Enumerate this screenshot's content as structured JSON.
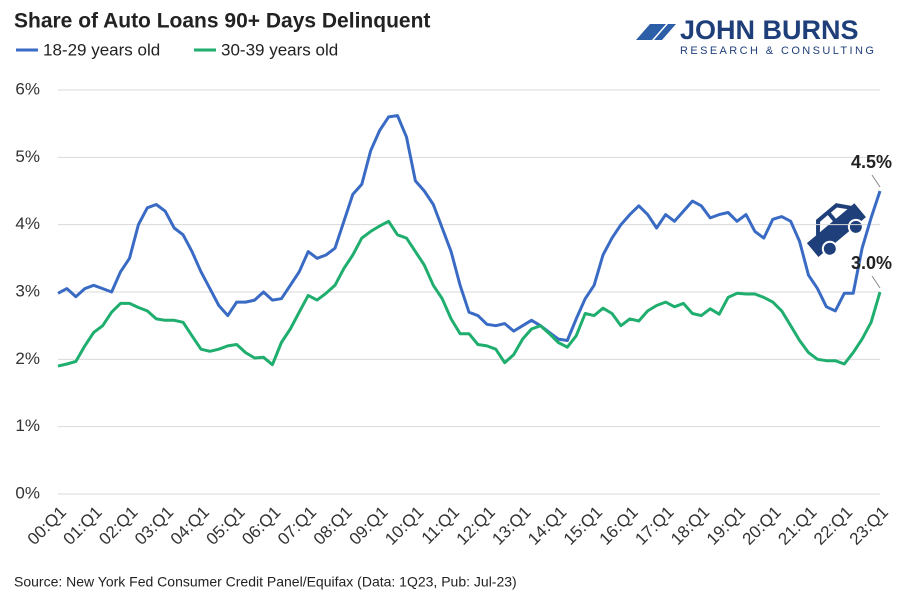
{
  "logo": {
    "name": "JOHN BURNS",
    "tagline": "RESEARCH & CONSULTING"
  },
  "chart_data": {
    "type": "line",
    "title": "Share of Auto Loans 90+ Days Delinquent",
    "source": "Source: New York Fed Consumer Credit Panel/Equifax (Data: 1Q23, Pub: Jul-23)",
    "categories": [
      "00:Q1",
      null,
      null,
      null,
      "01:Q1",
      null,
      null,
      null,
      "02:Q1",
      null,
      null,
      null,
      "03:Q1",
      null,
      null,
      null,
      "04:Q1",
      null,
      null,
      null,
      "05:Q1",
      null,
      null,
      null,
      "06:Q1",
      null,
      null,
      null,
      "07:Q1",
      null,
      null,
      null,
      "08:Q1",
      null,
      null,
      null,
      "09:Q1",
      null,
      null,
      null,
      "10:Q1",
      null,
      null,
      null,
      "11:Q1",
      null,
      null,
      null,
      "12:Q1",
      null,
      null,
      null,
      "13:Q1",
      null,
      null,
      null,
      "14:Q1",
      null,
      null,
      null,
      "15:Q1",
      null,
      null,
      null,
      "16:Q1",
      null,
      null,
      null,
      "17:Q1",
      null,
      null,
      null,
      "18:Q1",
      null,
      null,
      null,
      "19:Q1",
      null,
      null,
      null,
      "20:Q1",
      null,
      null,
      null,
      "21:Q1",
      null,
      null,
      null,
      "22:Q1",
      null,
      null,
      null,
      "23:Q1"
    ],
    "series": [
      {
        "name": "18-29 years old",
        "color": "#3a6bc4",
        "values": [
          2.98,
          3.05,
          2.93,
          3.05,
          3.1,
          3.05,
          3.0,
          3.3,
          3.5,
          4.0,
          4.25,
          4.3,
          4.2,
          3.95,
          3.85,
          3.6,
          3.3,
          3.05,
          2.8,
          2.65,
          2.85,
          2.85,
          2.88,
          3.0,
          2.88,
          2.9,
          3.1,
          3.3,
          3.6,
          3.5,
          3.55,
          3.65,
          4.05,
          4.45,
          4.6,
          5.1,
          5.4,
          5.6,
          5.62,
          5.3,
          4.65,
          4.5,
          4.3,
          3.95,
          3.6,
          3.1,
          2.7,
          2.65,
          2.52,
          2.5,
          2.53,
          2.42,
          2.5,
          2.58,
          2.5,
          2.4,
          2.3,
          2.28,
          2.6,
          2.9,
          3.1,
          3.55,
          3.8,
          4.0,
          4.15,
          4.28,
          4.15,
          3.95,
          4.15,
          4.05,
          4.2,
          4.35,
          4.28,
          4.1,
          4.15,
          4.18,
          4.05,
          4.15,
          3.9,
          3.8,
          4.08,
          4.12,
          4.05,
          3.75,
          3.25,
          3.05,
          2.78,
          2.72,
          2.98,
          2.98,
          3.65,
          4.1,
          4.5
        ],
        "value_labels": [
          null,
          null,
          null,
          null,
          null,
          null,
          null,
          null,
          null,
          null,
          null,
          null,
          null,
          null,
          null,
          null,
          null,
          null,
          null,
          null,
          null,
          null,
          null,
          null,
          null,
          null,
          null,
          null,
          null,
          null,
          null,
          null,
          null,
          null,
          null,
          null,
          null,
          null,
          null,
          null,
          null,
          null,
          null,
          null,
          null,
          null,
          null,
          null,
          null,
          null,
          null,
          null,
          null,
          null,
          null,
          null,
          null,
          null,
          null,
          null,
          null,
          null,
          null,
          null,
          null,
          null,
          null,
          null,
          null,
          null,
          null,
          null,
          null,
          null,
          null,
          null,
          null,
          null,
          null,
          null,
          null,
          null,
          null,
          null,
          null,
          null,
          null,
          null,
          null,
          null,
          null,
          null,
          "4.5%"
        ]
      },
      {
        "name": "30-39 years old",
        "color": "#1fae6e",
        "values": [
          1.9,
          1.93,
          1.97,
          2.2,
          2.4,
          2.5,
          2.7,
          2.83,
          2.83,
          2.77,
          2.72,
          2.6,
          2.58,
          2.58,
          2.55,
          2.35,
          2.15,
          2.12,
          2.15,
          2.2,
          2.22,
          2.1,
          2.02,
          2.03,
          1.92,
          2.25,
          2.45,
          2.7,
          2.95,
          2.88,
          2.98,
          3.1,
          3.35,
          3.55,
          3.8,
          3.9,
          3.98,
          4.05,
          3.85,
          3.8,
          3.6,
          3.4,
          3.1,
          2.9,
          2.6,
          2.38,
          2.38,
          2.22,
          2.2,
          2.15,
          1.95,
          2.07,
          2.3,
          2.45,
          2.5,
          2.38,
          2.25,
          2.18,
          2.35,
          2.68,
          2.65,
          2.76,
          2.68,
          2.5,
          2.6,
          2.57,
          2.72,
          2.8,
          2.85,
          2.78,
          2.83,
          2.68,
          2.65,
          2.75,
          2.67,
          2.92,
          2.98,
          2.97,
          2.97,
          2.92,
          2.85,
          2.72,
          2.5,
          2.28,
          2.1,
          2.0,
          1.98,
          1.98,
          1.93,
          2.1,
          2.3,
          2.55,
          3.0
        ],
        "value_labels": [
          null,
          null,
          null,
          null,
          null,
          null,
          null,
          null,
          null,
          null,
          null,
          null,
          null,
          null,
          null,
          null,
          null,
          null,
          null,
          null,
          null,
          null,
          null,
          null,
          null,
          null,
          null,
          null,
          null,
          null,
          null,
          null,
          null,
          null,
          null,
          null,
          null,
          null,
          null,
          null,
          null,
          null,
          null,
          null,
          null,
          null,
          null,
          null,
          null,
          null,
          null,
          null,
          null,
          null,
          null,
          null,
          null,
          null,
          null,
          null,
          null,
          null,
          null,
          null,
          null,
          null,
          null,
          null,
          null,
          null,
          null,
          null,
          null,
          null,
          null,
          null,
          null,
          null,
          null,
          null,
          null,
          null,
          null,
          null,
          null,
          null,
          null,
          null,
          null,
          null,
          null,
          null,
          "3.0%"
        ]
      }
    ],
    "ylim": [
      0,
      6
    ],
    "yticks": [
      {
        "value": 0,
        "label": "0%"
      },
      {
        "value": 1,
        "label": "1%"
      },
      {
        "value": 2,
        "label": "2%"
      },
      {
        "value": 3,
        "label": "3%"
      },
      {
        "value": 4,
        "label": "4%"
      },
      {
        "value": 5,
        "label": "5%"
      },
      {
        "value": 6,
        "label": "6%"
      }
    ],
    "grid": true
  }
}
